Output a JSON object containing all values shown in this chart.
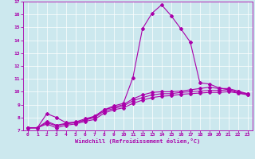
{
  "xlabel": "Windchill (Refroidissement éolien,°C)",
  "bg_color": "#cce8ee",
  "line_color": "#aa00aa",
  "xlim": [
    -0.5,
    23.5
  ],
  "ylim": [
    7,
    17
  ],
  "xticks": [
    0,
    1,
    2,
    3,
    4,
    5,
    6,
    7,
    8,
    9,
    10,
    11,
    12,
    13,
    14,
    15,
    16,
    17,
    18,
    19,
    20,
    21,
    22,
    23
  ],
  "yticks": [
    7,
    8,
    9,
    10,
    11,
    12,
    13,
    14,
    15,
    16,
    17
  ],
  "line1_x": [
    0,
    1,
    2,
    3,
    4,
    5,
    6,
    7,
    8,
    9,
    10,
    11,
    12,
    13,
    14,
    15,
    16,
    17,
    18,
    19,
    20,
    21,
    22,
    23
  ],
  "line1_y": [
    7.2,
    7.2,
    8.3,
    8.0,
    7.6,
    7.6,
    7.8,
    8.1,
    8.6,
    8.9,
    9.1,
    11.1,
    14.9,
    16.1,
    16.75,
    15.9,
    14.9,
    13.85,
    10.7,
    10.6,
    10.3,
    10.15,
    9.9,
    9.8
  ],
  "line2_x": [
    0,
    1,
    2,
    3,
    4,
    5,
    6,
    7,
    8,
    9,
    10,
    11,
    12,
    13,
    14,
    15,
    16,
    17,
    18,
    19,
    20,
    21,
    22,
    23
  ],
  "line2_y": [
    7.2,
    7.2,
    7.5,
    7.2,
    7.4,
    7.5,
    7.7,
    7.85,
    8.35,
    8.6,
    8.75,
    9.1,
    9.35,
    9.55,
    9.65,
    9.7,
    9.8,
    9.85,
    9.9,
    9.95,
    9.95,
    10.0,
    9.9,
    9.75
  ],
  "line3_x": [
    0,
    1,
    2,
    3,
    4,
    5,
    6,
    7,
    8,
    9,
    10,
    11,
    12,
    13,
    14,
    15,
    16,
    17,
    18,
    19,
    20,
    21,
    22,
    23
  ],
  "line3_y": [
    7.2,
    7.2,
    7.6,
    7.35,
    7.5,
    7.6,
    7.8,
    8.0,
    8.5,
    8.7,
    8.9,
    9.3,
    9.55,
    9.75,
    9.85,
    9.85,
    9.95,
    10.0,
    10.05,
    10.1,
    10.1,
    10.15,
    10.0,
    9.82
  ],
  "line4_x": [
    0,
    1,
    2,
    3,
    4,
    5,
    6,
    7,
    8,
    9,
    10,
    11,
    12,
    13,
    14,
    15,
    16,
    17,
    18,
    19,
    20,
    21,
    22,
    23
  ],
  "line4_y": [
    7.2,
    7.2,
    7.7,
    7.4,
    7.55,
    7.65,
    7.9,
    8.1,
    8.6,
    8.8,
    9.0,
    9.45,
    9.75,
    9.95,
    10.0,
    10.0,
    10.05,
    10.15,
    10.25,
    10.35,
    10.25,
    10.25,
    10.05,
    9.85
  ]
}
